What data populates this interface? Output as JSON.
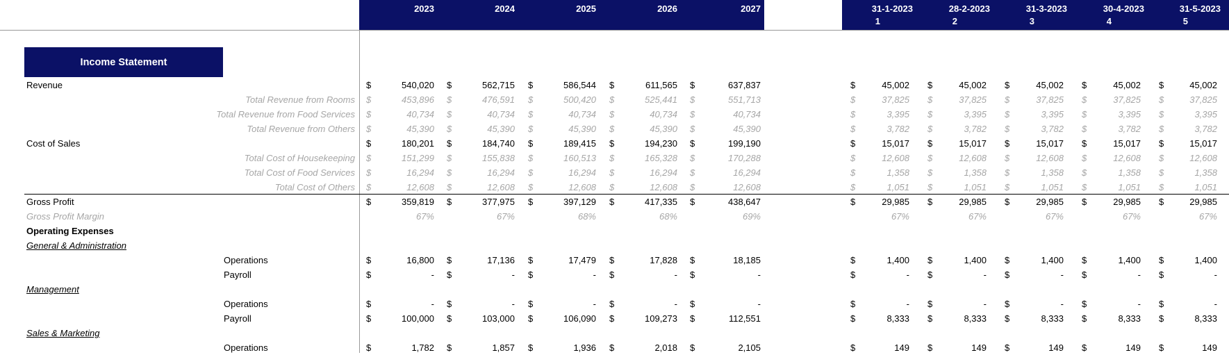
{
  "header": {
    "years": [
      "2023",
      "2024",
      "2025",
      "2026",
      "2027"
    ],
    "months": [
      {
        "date": "31-1-2023",
        "num": "1"
      },
      {
        "date": "28-2-2023",
        "num": "2"
      },
      {
        "date": "31-3-2023",
        "num": "3"
      },
      {
        "date": "30-4-2023",
        "num": "4"
      },
      {
        "date": "31-5-2023",
        "num": "5"
      }
    ],
    "accent_color": "#0b1166"
  },
  "title": "Income Statement",
  "currency": "$",
  "rows": [
    {
      "label": "Revenue",
      "style": "main",
      "years": [
        "540,020",
        "562,715",
        "586,544",
        "611,565",
        "637,837"
      ],
      "months": [
        "45,002",
        "45,002",
        "45,002",
        "45,002",
        "45,002"
      ]
    },
    {
      "label": "Total Revenue from Rooms",
      "style": "sub",
      "years": [
        "453,896",
        "476,591",
        "500,420",
        "525,441",
        "551,713"
      ],
      "months": [
        "37,825",
        "37,825",
        "37,825",
        "37,825",
        "37,825"
      ]
    },
    {
      "label": "Total Revenue from Food Services",
      "style": "sub",
      "years": [
        "40,734",
        "40,734",
        "40,734",
        "40,734",
        "40,734"
      ],
      "months": [
        "3,395",
        "3,395",
        "3,395",
        "3,395",
        "3,395"
      ]
    },
    {
      "label": "Total Revenue from Others",
      "style": "sub",
      "years": [
        "45,390",
        "45,390",
        "45,390",
        "45,390",
        "45,390"
      ],
      "months": [
        "3,782",
        "3,782",
        "3,782",
        "3,782",
        "3,782"
      ]
    },
    {
      "label": "Cost of Sales",
      "style": "main",
      "years": [
        "180,201",
        "184,740",
        "189,415",
        "194,230",
        "199,190"
      ],
      "months": [
        "15,017",
        "15,017",
        "15,017",
        "15,017",
        "15,017"
      ]
    },
    {
      "label": "Total Cost of Housekeeping",
      "style": "sub",
      "years": [
        "151,299",
        "155,838",
        "160,513",
        "165,328",
        "170,288"
      ],
      "months": [
        "12,608",
        "12,608",
        "12,608",
        "12,608",
        "12,608"
      ]
    },
    {
      "label": "Total Cost of Food Services",
      "style": "sub",
      "years": [
        "16,294",
        "16,294",
        "16,294",
        "16,294",
        "16,294"
      ],
      "months": [
        "1,358",
        "1,358",
        "1,358",
        "1,358",
        "1,358"
      ]
    },
    {
      "label": "Total Cost of Others",
      "style": "sub",
      "years": [
        "12,608",
        "12,608",
        "12,608",
        "12,608",
        "12,608"
      ],
      "months": [
        "1,051",
        "1,051",
        "1,051",
        "1,051",
        "1,051"
      ]
    },
    {
      "label": "Gross Profit",
      "style": "main",
      "years": [
        "359,819",
        "377,975",
        "397,129",
        "417,335",
        "438,647"
      ],
      "months": [
        "29,985",
        "29,985",
        "29,985",
        "29,985",
        "29,985"
      ]
    },
    {
      "label": "Gross Profit Margin",
      "style": "pct",
      "years": [
        "67%",
        "67%",
        "68%",
        "68%",
        "69%"
      ],
      "months": [
        "67%",
        "67%",
        "67%",
        "67%",
        "67%"
      ]
    },
    {
      "label": "Operating Expenses",
      "style": "bold"
    },
    {
      "label": "General & Administration",
      "style": "ul"
    },
    {
      "label": "Operations",
      "style": "ind",
      "years": [
        "16,800",
        "17,136",
        "17,479",
        "17,828",
        "18,185"
      ],
      "months": [
        "1,400",
        "1,400",
        "1,400",
        "1,400",
        "1,400"
      ]
    },
    {
      "label": "Payroll",
      "style": "ind",
      "years": [
        "-",
        "-",
        "-",
        "-",
        "-"
      ],
      "months": [
        "-",
        "-",
        "-",
        "-",
        "-"
      ]
    },
    {
      "label": "Management",
      "style": "ul"
    },
    {
      "label": "Operations",
      "style": "ind",
      "years": [
        "-",
        "-",
        "-",
        "-",
        "-"
      ],
      "months": [
        "-",
        "-",
        "-",
        "-",
        "-"
      ]
    },
    {
      "label": "Payroll",
      "style": "ind",
      "years": [
        "100,000",
        "103,000",
        "106,090",
        "109,273",
        "112,551"
      ],
      "months": [
        "8,333",
        "8,333",
        "8,333",
        "8,333",
        "8,333"
      ]
    },
    {
      "label": "Sales & Marketing",
      "style": "ul"
    },
    {
      "label": "Operations",
      "style": "ind",
      "years": [
        "1,782",
        "1,857",
        "1,936",
        "2,018",
        "2,105"
      ],
      "months": [
        "149",
        "149",
        "149",
        "149",
        "149"
      ]
    }
  ]
}
